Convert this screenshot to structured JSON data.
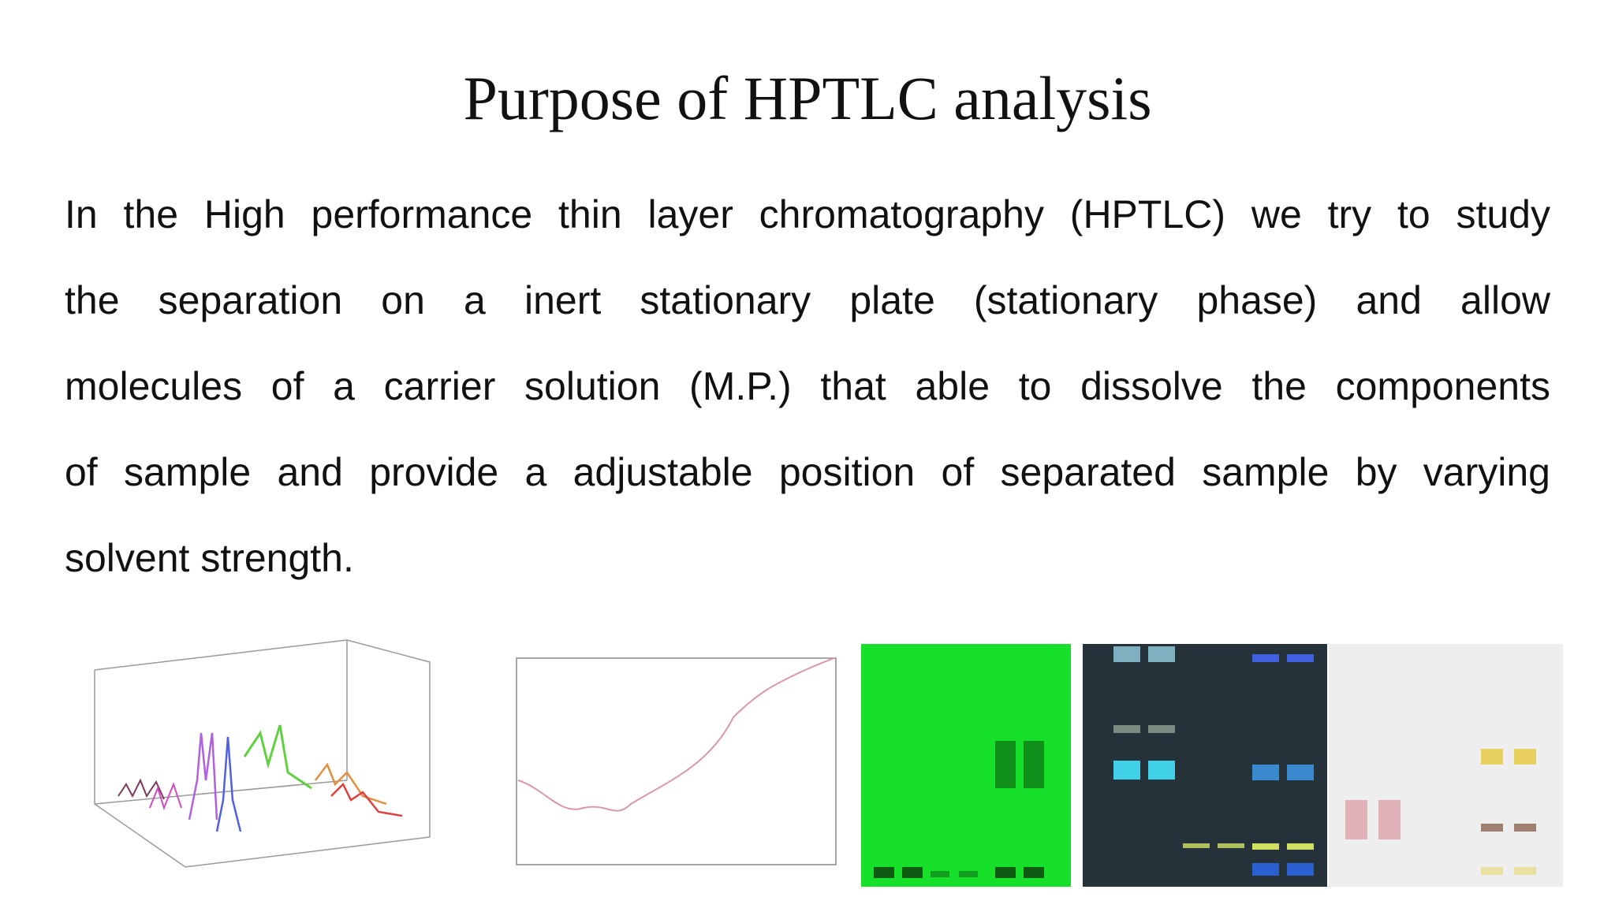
{
  "header": {
    "title": "Purpose of HPTLC analysis"
  },
  "body": {
    "lines": [
      "In the High performance thin layer chromatography (HPTLC) we try to study",
      "the separation on a inert stationary plate (stationary phase) and allow",
      "molecules of a carrier solution (M.P.) that able to dissolve the components",
      "of sample and provide a adjustable position of separated sample by varying",
      "solvent strength."
    ]
  }
}
